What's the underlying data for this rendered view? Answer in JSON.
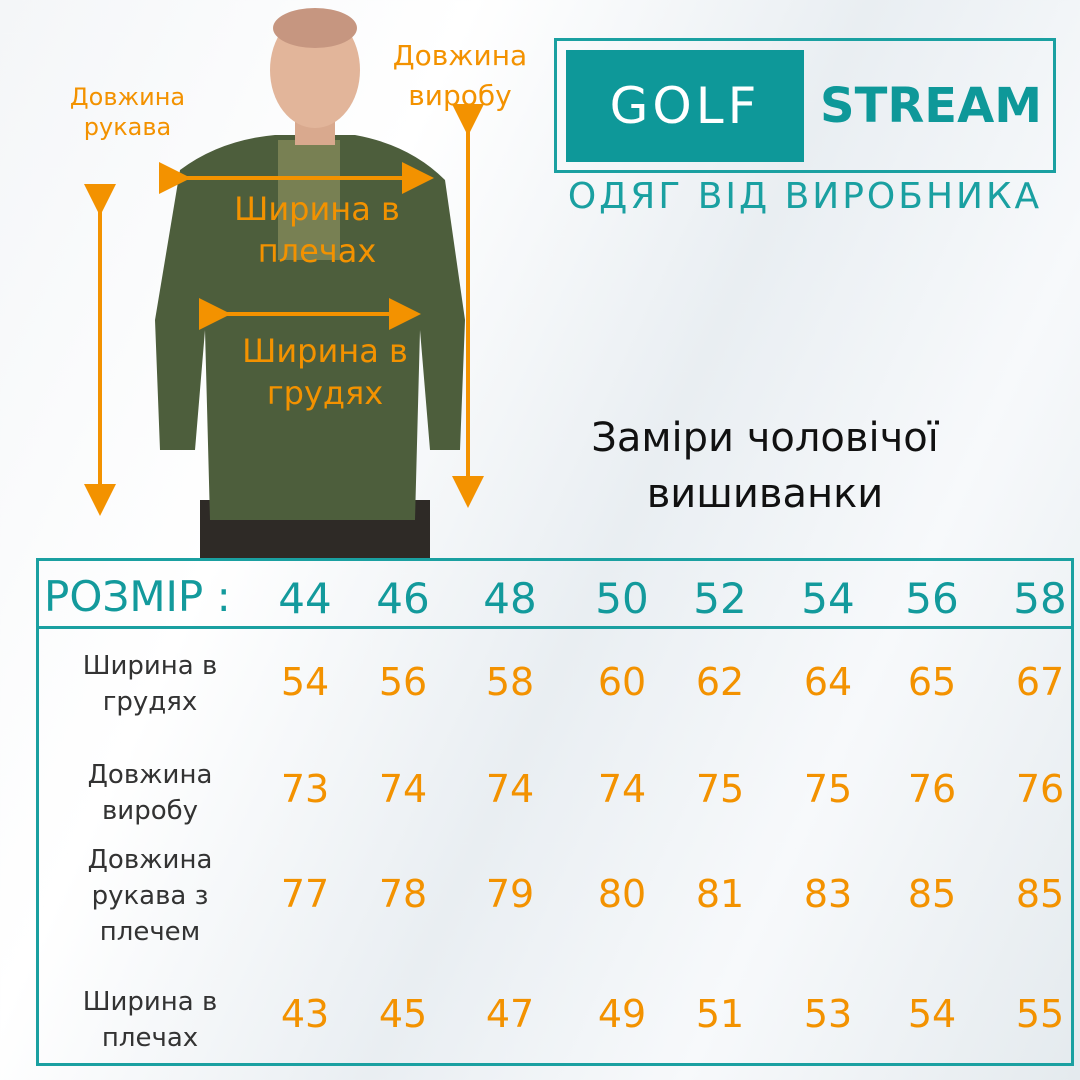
{
  "logo": {
    "word1": "GOLF",
    "word2": "STREAM",
    "tagline": "ОДЯГ ВІД ВИРОБНИКА"
  },
  "colors": {
    "teal": "#139a9c",
    "orange": "#f39200",
    "shirt": "#4d5e3c"
  },
  "diagram_labels": {
    "sleeve": "Довжина рукава",
    "length": "Довжина виробу",
    "shoulders": "Ширина в плечах",
    "chest": "Ширина в грудях"
  },
  "title": "Заміри чоловічої вишиванки",
  "table": {
    "size_label": "РОЗМІР :",
    "sizes": [
      "44",
      "46",
      "48",
      "50",
      "52",
      "54",
      "56",
      "58"
    ],
    "rows": [
      {
        "label": "Ширина в грудях",
        "values": [
          "54",
          "56",
          "58",
          "60",
          "62",
          "64",
          "65",
          "67"
        ]
      },
      {
        "label": "Довжина виробу",
        "values": [
          "73",
          "74",
          "74",
          "74",
          "75",
          "75",
          "76",
          "76"
        ]
      },
      {
        "label": "Довжина рукава з плечем",
        "values": [
          "77",
          "78",
          "79",
          "80",
          "81",
          "83",
          "85",
          "85"
        ]
      },
      {
        "label": "Ширина в плечах",
        "values": [
          "43",
          "45",
          "47",
          "49",
          "51",
          "53",
          "54",
          "55"
        ]
      }
    ]
  }
}
